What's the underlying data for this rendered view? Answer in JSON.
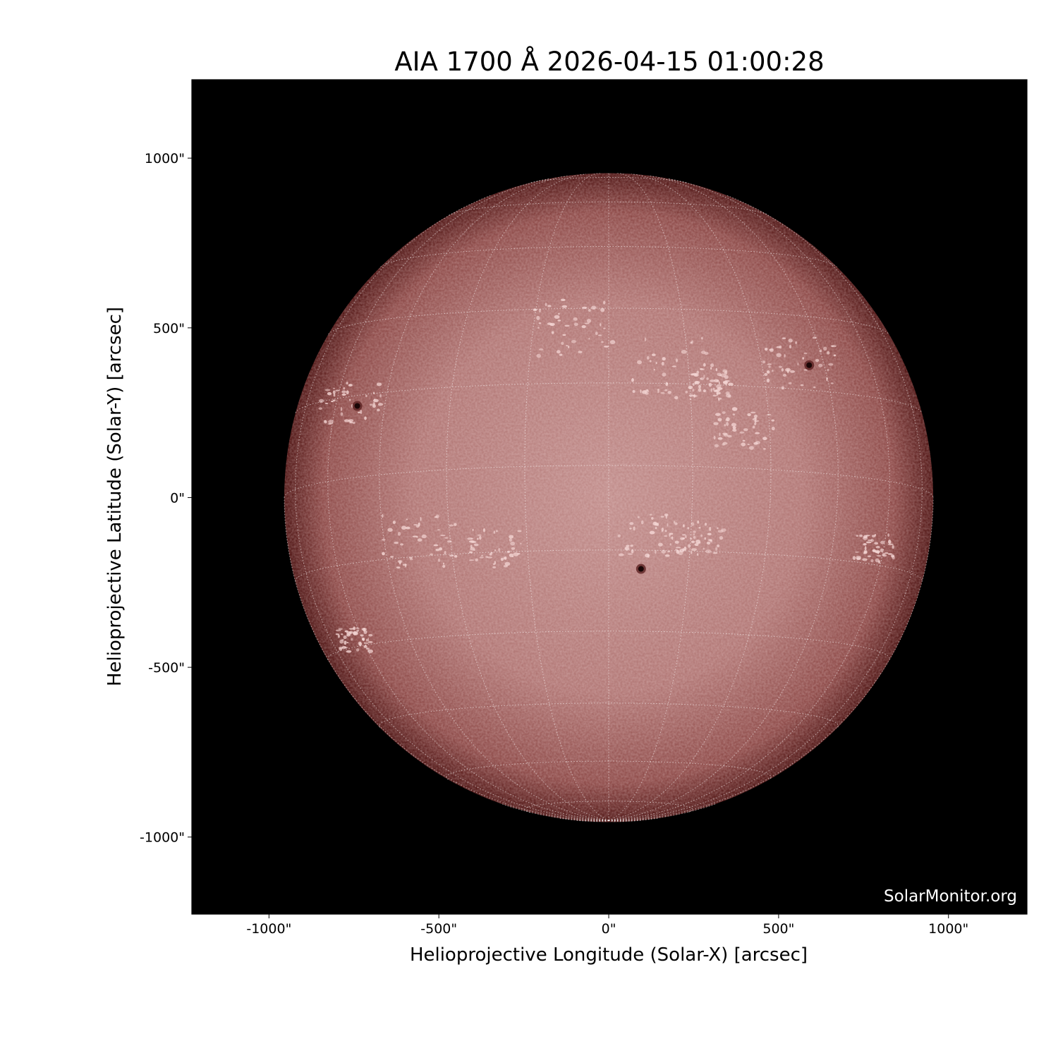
{
  "chart_data": {
    "type": "image",
    "title": "AIA 1700 Å 2026-04-15 01:00:28",
    "xlabel": "Helioprojective Longitude (Solar-X) [arcsec]",
    "ylabel": "Helioprojective Latitude (Solar-Y) [arcsec]",
    "xlim": [
      -1227,
      1231
    ],
    "ylim": [
      -1227,
      1231
    ],
    "xticks": [
      -1000,
      -500,
      0,
      500,
      1000
    ],
    "yticks": [
      -1000,
      -500,
      0,
      500,
      1000
    ],
    "xtick_labels": [
      "-1000\"",
      "-500\"",
      "0\"",
      "500\"",
      "1000\""
    ],
    "ytick_labels": [
      "-1000\"",
      "-500\"",
      "0\"",
      "500\"",
      "1000\""
    ],
    "solar_radius_arcsec": 955,
    "grid_spacing_deg": 15,
    "colormap": "sdoaia1700",
    "colors": {
      "background": "#000000",
      "disk_center": "#c08a88",
      "disk_limb": "#5a1a18",
      "grid": "#ffffff"
    },
    "sunspots_arcsec": [
      [
        -740,
        270
      ],
      [
        590,
        390
      ],
      [
        95,
        -210
      ]
    ],
    "watermark": "SolarMonitor.org"
  }
}
